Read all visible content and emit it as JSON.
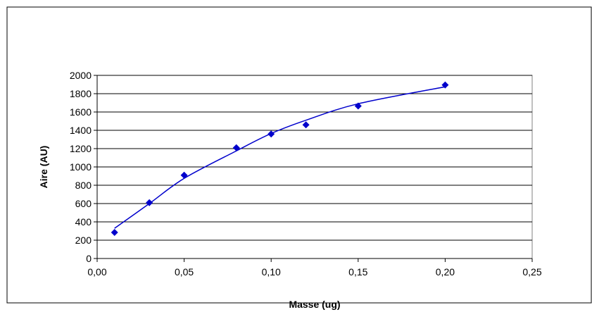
{
  "chart_data": {
    "type": "scatter",
    "title": "",
    "xlabel": "Masse (ug)",
    "ylabel": "Aire (AU)",
    "xlim": [
      0,
      0.25
    ],
    "ylim": [
      0,
      2000
    ],
    "x_ticks": [
      "0,00",
      "0,05",
      "0,10",
      "0,15",
      "0,20",
      "0,25"
    ],
    "y_ticks": [
      "0",
      "200",
      "400",
      "600",
      "800",
      "1000",
      "1200",
      "1400",
      "1600",
      "1800",
      "2000"
    ],
    "grid": "horizontal",
    "legend": "none",
    "marker_color": "#0000CC",
    "line_color": "#0000CC",
    "points": [
      {
        "x": 0.01,
        "y": 285
      },
      {
        "x": 0.03,
        "y": 610
      },
      {
        "x": 0.05,
        "y": 910
      },
      {
        "x": 0.08,
        "y": 1210
      },
      {
        "x": 0.1,
        "y": 1360
      },
      {
        "x": 0.12,
        "y": 1460
      },
      {
        "x": 0.15,
        "y": 1665
      },
      {
        "x": 0.2,
        "y": 1895
      }
    ],
    "trend_line": [
      {
        "x": 0.01,
        "y": 330
      },
      {
        "x": 0.03,
        "y": 600
      },
      {
        "x": 0.05,
        "y": 875
      },
      {
        "x": 0.08,
        "y": 1175
      },
      {
        "x": 0.1,
        "y": 1365
      },
      {
        "x": 0.12,
        "y": 1510
      },
      {
        "x": 0.15,
        "y": 1690
      },
      {
        "x": 0.2,
        "y": 1875
      }
    ]
  }
}
